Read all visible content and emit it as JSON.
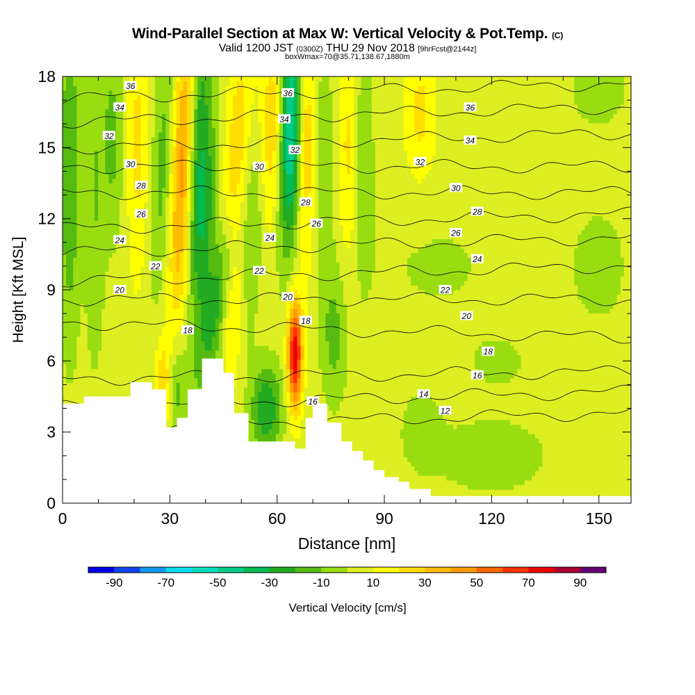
{
  "title": {
    "main": "Wind-Parallel Section at Max W: Vertical Velocity & Pot.Temp.",
    "copyright": "(C)",
    "valid_prefix": "Valid 1200 JST",
    "valid_utc": "(0300Z)",
    "valid_date": "THU 29 Nov 2018",
    "forecast_tag": "[9hrFcst@2144z]",
    "box_info": "boxWmax=70@35.71,138.67,1880m"
  },
  "chart_data": {
    "type": "heatmap",
    "xlabel": "Distance [nm]",
    "ylabel": "Height [Kft MSL]",
    "xlim": [
      0,
      159
    ],
    "ylim": [
      0,
      18
    ],
    "x_ticks": [
      0,
      30,
      60,
      90,
      120,
      150
    ],
    "y_ticks": [
      0,
      3,
      6,
      9,
      12,
      15,
      18
    ],
    "colorbar": {
      "label": "Vertical Velocity [cm/s]",
      "tick_labels": [
        -90,
        -70,
        -50,
        -30,
        -10,
        10,
        30,
        50,
        70,
        90
      ],
      "bounds": [
        -100,
        -90,
        -80,
        -70,
        -60,
        -50,
        -40,
        -30,
        -20,
        -10,
        0,
        10,
        20,
        30,
        40,
        50,
        60,
        70,
        80,
        90,
        100
      ],
      "colors": [
        "#0000ee",
        "#1144ee",
        "#1199ee",
        "#00ddee",
        "#00ddbb",
        "#00cc88",
        "#00bb55",
        "#22aa22",
        "#55bb11",
        "#99dd11",
        "#ddee22",
        "#ffff00",
        "#ffdd00",
        "#ffbb00",
        "#ff9900",
        "#ff6600",
        "#ff3300",
        "#ee0000",
        "#aa0033",
        "#660077"
      ]
    },
    "background_level": 5,
    "vertical_velocity_features": [
      {
        "x": 2,
        "y": 14,
        "sx": 2,
        "sy": 5,
        "w": -25,
        "tilt": 0
      },
      {
        "x": 9,
        "y": 13,
        "sx": 2,
        "sy": 5,
        "w": -15,
        "tilt": 0
      },
      {
        "x": 14,
        "y": 15.5,
        "sx": 2,
        "sy": 3,
        "w": -18,
        "tilt": 0
      },
      {
        "x": 21,
        "y": 15,
        "sx": 2,
        "sy": 4,
        "w": 18,
        "tilt": 0
      },
      {
        "x": 29,
        "y": 14.5,
        "sx": 2.5,
        "sy": 4,
        "w": -25,
        "tilt": 0.3
      },
      {
        "x": 33,
        "y": 14,
        "sx": 2.5,
        "sy": 4.5,
        "w": 45,
        "tilt": 0.2
      },
      {
        "x": 38,
        "y": 15,
        "sx": 2,
        "sy": 4,
        "w": -35,
        "tilt": 0.3
      },
      {
        "x": 44,
        "y": 9,
        "sx": 3,
        "sy": 3,
        "w": -35,
        "tilt": 1.2
      },
      {
        "x": 40,
        "y": 12,
        "sx": 2,
        "sy": 3,
        "w": -25,
        "tilt": 0.5
      },
      {
        "x": 48,
        "y": 12,
        "sx": 2.5,
        "sy": 5,
        "w": 30,
        "tilt": 0.3
      },
      {
        "x": 53,
        "y": 11,
        "sx": 2,
        "sy": 3,
        "w": -15,
        "tilt": 0.3
      },
      {
        "x": 59,
        "y": 15.5,
        "sx": 2.5,
        "sy": 3,
        "w": 30,
        "tilt": 0
      },
      {
        "x": 64,
        "y": 16.5,
        "sx": 2,
        "sy": 3,
        "w": -50,
        "tilt": 0
      },
      {
        "x": 62,
        "y": 13.5,
        "sx": 2.5,
        "sy": 3,
        "w": -25,
        "tilt": 0
      },
      {
        "x": 68,
        "y": 15,
        "sx": 2,
        "sy": 3.5,
        "w": 25,
        "tilt": 0
      },
      {
        "x": 73,
        "y": 14,
        "sx": 2,
        "sy": 3.5,
        "w": -15,
        "tilt": 0
      },
      {
        "x": 80,
        "y": 15,
        "sx": 2,
        "sy": 3.5,
        "w": 18,
        "tilt": 0
      },
      {
        "x": 84,
        "y": 14.5,
        "sx": 2,
        "sy": 3.5,
        "w": -15,
        "tilt": 0
      },
      {
        "x": 65,
        "y": 6.3,
        "sx": 1.4,
        "sy": 1.6,
        "w": 75,
        "tilt": 0
      },
      {
        "x": 57,
        "y": 4,
        "sx": 3,
        "sy": 1.3,
        "w": -35,
        "tilt": 0
      },
      {
        "x": 44,
        "y": 5,
        "sx": 2,
        "sy": 1.2,
        "w": -10,
        "tilt": 0
      },
      {
        "x": 32,
        "y": 5,
        "sx": 1.5,
        "sy": 1.5,
        "w": -20,
        "tilt": 0
      },
      {
        "x": 28,
        "y": 5.2,
        "sx": 1.5,
        "sy": 1.2,
        "w": 22,
        "tilt": 0
      },
      {
        "x": 76,
        "y": 7,
        "sx": 2.5,
        "sy": 2,
        "w": -18,
        "tilt": 0
      },
      {
        "x": 105,
        "y": 10,
        "sx": 15,
        "sy": 2,
        "w": -6,
        "tilt": 0
      },
      {
        "x": 150,
        "y": 10,
        "sx": 8,
        "sy": 2.5,
        "w": -7,
        "tilt": 0
      },
      {
        "x": 120,
        "y": 2,
        "sx": 15,
        "sy": 1.5,
        "w": -8,
        "tilt": 0
      },
      {
        "x": 100,
        "y": 3.2,
        "sx": 4,
        "sy": 1.2,
        "w": -8,
        "tilt": 0
      },
      {
        "x": 100,
        "y": 16.5,
        "sx": 3,
        "sy": 2,
        "w": 18,
        "tilt": 0
      },
      {
        "x": 150,
        "y": 17.5,
        "sx": 5,
        "sy": 1,
        "w": -14,
        "tilt": 0
      },
      {
        "x": 122,
        "y": 6,
        "sx": 8,
        "sy": 1,
        "w": -6,
        "tilt": 0
      }
    ],
    "terrain": [
      [
        0,
        4.2
      ],
      [
        6,
        4.2
      ],
      [
        6,
        4.5
      ],
      [
        19,
        4.5
      ],
      [
        19,
        5.1
      ],
      [
        25,
        5.1
      ],
      [
        25,
        4.8
      ],
      [
        29,
        4.8
      ],
      [
        29,
        3.2
      ],
      [
        32,
        3.2
      ],
      [
        32,
        3.6
      ],
      [
        35,
        3.6
      ],
      [
        35,
        4.8
      ],
      [
        39,
        4.8
      ],
      [
        39,
        6.1
      ],
      [
        45,
        6.1
      ],
      [
        45,
        5.5
      ],
      [
        48,
        5.5
      ],
      [
        48,
        3.8
      ],
      [
        52,
        3.8
      ],
      [
        52,
        2.6
      ],
      [
        65,
        2.6
      ],
      [
        65,
        2.3
      ],
      [
        68,
        2.3
      ],
      [
        68,
        3.6
      ],
      [
        70,
        3.6
      ],
      [
        70,
        4.2
      ],
      [
        74,
        4.2
      ],
      [
        74,
        3.4
      ],
      [
        78,
        3.4
      ],
      [
        78,
        2.6
      ],
      [
        81,
        2.6
      ],
      [
        81,
        2.2
      ],
      [
        84,
        2.2
      ],
      [
        84,
        1.8
      ],
      [
        87,
        1.8
      ],
      [
        87,
        1.4
      ],
      [
        90,
        1.4
      ],
      [
        90,
        1.1
      ],
      [
        94,
        1.1
      ],
      [
        94,
        0.9
      ],
      [
        97,
        0.9
      ],
      [
        97,
        0.6
      ],
      [
        103,
        0.6
      ],
      [
        103,
        0.3
      ],
      [
        159,
        0.3
      ]
    ],
    "isentropes": [
      {
        "theta": 12,
        "ylevel": 3.5,
        "slope": 0.004
      },
      {
        "theta": 14,
        "ylevel": 4.4,
        "slope": 0.004
      },
      {
        "theta": 16,
        "ylevel": 5.4,
        "slope": 0.002
      },
      {
        "theta": 18,
        "ylevel": 7.3,
        "slope": -0.004
      },
      {
        "theta": 20,
        "ylevel": 8.6,
        "slope": 0.0
      },
      {
        "theta": 22,
        "ylevel": 9.7,
        "slope": 0.004
      },
      {
        "theta": 24,
        "ylevel": 10.9,
        "slope": 0.004
      },
      {
        "theta": 26,
        "ylevel": 11.9,
        "slope": 0.004
      },
      {
        "theta": 28,
        "ylevel": 13.1,
        "slope": 0.0
      },
      {
        "theta": 30,
        "ylevel": 14.2,
        "slope": 0.0
      },
      {
        "theta": 32,
        "ylevel": 15.3,
        "slope": 0.004
      },
      {
        "theta": 34,
        "ylevel": 16.4,
        "slope": 0.004
      },
      {
        "theta": 36,
        "ylevel": 17.4,
        "slope": 0.004
      }
    ],
    "isentrope_labels": [
      {
        "text": "36",
        "x": 19,
        "y": 17.6
      },
      {
        "text": "34",
        "x": 16,
        "y": 16.7
      },
      {
        "text": "32",
        "x": 13,
        "y": 15.5
      },
      {
        "text": "30",
        "x": 19,
        "y": 14.3
      },
      {
        "text": "28",
        "x": 22,
        "y": 13.4
      },
      {
        "text": "26",
        "x": 22,
        "y": 12.2
      },
      {
        "text": "24",
        "x": 16,
        "y": 11.1
      },
      {
        "text": "22",
        "x": 26,
        "y": 10.0
      },
      {
        "text": "20",
        "x": 16,
        "y": 9.0
      },
      {
        "text": "18",
        "x": 35,
        "y": 7.3
      },
      {
        "text": "36",
        "x": 63,
        "y": 17.3
      },
      {
        "text": "34",
        "x": 62,
        "y": 16.2
      },
      {
        "text": "32",
        "x": 65,
        "y": 14.9
      },
      {
        "text": "30",
        "x": 55,
        "y": 14.2
      },
      {
        "text": "28",
        "x": 68,
        "y": 12.7
      },
      {
        "text": "26",
        "x": 71,
        "y": 11.8
      },
      {
        "text": "24",
        "x": 58,
        "y": 11.2
      },
      {
        "text": "22",
        "x": 55,
        "y": 9.8
      },
      {
        "text": "20",
        "x": 63,
        "y": 8.7
      },
      {
        "text": "18",
        "x": 68,
        "y": 7.7
      },
      {
        "text": "16",
        "x": 70,
        "y": 4.3
      },
      {
        "text": "36",
        "x": 114,
        "y": 16.7
      },
      {
        "text": "34",
        "x": 114,
        "y": 15.3
      },
      {
        "text": "32",
        "x": 100,
        "y": 14.4
      },
      {
        "text": "30",
        "x": 110,
        "y": 13.3
      },
      {
        "text": "28",
        "x": 116,
        "y": 12.3
      },
      {
        "text": "26",
        "x": 110,
        "y": 11.4
      },
      {
        "text": "24",
        "x": 116,
        "y": 10.3
      },
      {
        "text": "22",
        "x": 107,
        "y": 9.0
      },
      {
        "text": "20",
        "x": 113,
        "y": 7.9
      },
      {
        "text": "18",
        "x": 119,
        "y": 6.4
      },
      {
        "text": "16",
        "x": 116,
        "y": 5.4
      },
      {
        "text": "14",
        "x": 101,
        "y": 4.6
      },
      {
        "text": "12",
        "x": 107,
        "y": 3.9
      }
    ]
  }
}
